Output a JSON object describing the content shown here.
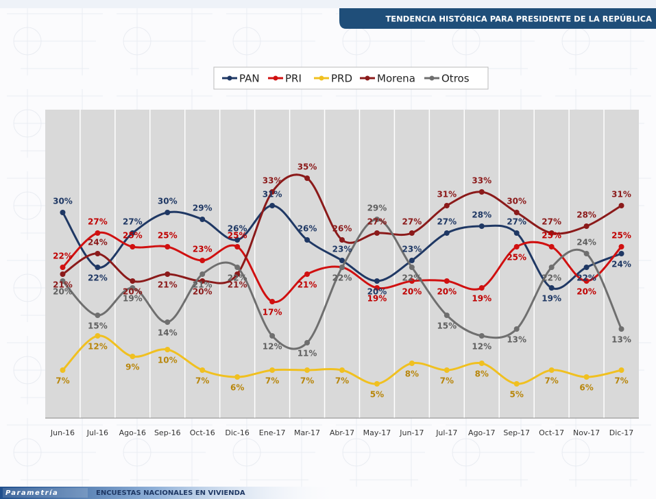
{
  "chart_data": {
    "type": "line",
    "title": "TENDENCIA HISTÓRICA PARA PRESIDENTE DE LA REPÚBLICA",
    "footer_brand": "Parametría",
    "footer_text": "ENCUESTAS NACIONALES  EN VIVIENDA",
    "categories": [
      "Jun-16",
      "Jul-16",
      "Ago-16",
      "Sep-16",
      "Oct-16",
      "Dic-16",
      "Ene-17",
      "Mar-17",
      "Abr-17",
      "May-17",
      "Jun-17",
      "Jul-17",
      "Ago-17",
      "Sep-17",
      "Oct-17",
      "Nov-17",
      "Dic-17"
    ],
    "series": [
      {
        "name": "PAN",
        "color": "#1f3864",
        "label_color": "#1f3864",
        "values": [
          30,
          22,
          27,
          30,
          29,
          26,
          31,
          26,
          23,
          20,
          23,
          27,
          28,
          27,
          19,
          22,
          24
        ],
        "value_labels": [
          "30%",
          "22%",
          "27%",
          "30%",
          "29%",
          "26%",
          "31%",
          "26%",
          "23%",
          "20%",
          "23%",
          "27%",
          "28%",
          "27%",
          "19%",
          "22%",
          "24%"
        ]
      },
      {
        "name": "PRI",
        "color": "#d01010",
        "label_color": "#c00000",
        "values": [
          22,
          27,
          25,
          25,
          23,
          25,
          17,
          21,
          22,
          19,
          20,
          20,
          19,
          25,
          25,
          20,
          25
        ],
        "value_labels": [
          "22%",
          "27%",
          "25%",
          "25%",
          "23%",
          "25%",
          "17%",
          "21%",
          null,
          "19%",
          "20%",
          "20%",
          "19%",
          "25%",
          "25%",
          "20%",
          "25%"
        ]
      },
      {
        "name": "PRD",
        "color": "#f0c020",
        "label_color": "#b8860b",
        "values": [
          7,
          12,
          9,
          10,
          7,
          6,
          7,
          7,
          7,
          5,
          8,
          7,
          8,
          5,
          7,
          6,
          7
        ],
        "value_labels": [
          "7%",
          "12%",
          "9%",
          "10%",
          "7%",
          "6%",
          "7%",
          "7%",
          "7%",
          "5%",
          "8%",
          "7%",
          "8%",
          "5%",
          "7%",
          "6%",
          "7%"
        ]
      },
      {
        "name": "Morena",
        "color": "#8b1a1a",
        "label_color": "#8b1a1a",
        "values": [
          21,
          24,
          20,
          21,
          20,
          21,
          33,
          35,
          26,
          27,
          27,
          31,
          33,
          30,
          27,
          28,
          31
        ],
        "value_labels": [
          "21%",
          "24%",
          "20%",
          "21%",
          "20%",
          "21%",
          "33%",
          "35%",
          "26%",
          "27%",
          "27%",
          "31%",
          "33%",
          "30%",
          "27%",
          "28%",
          "31%"
        ]
      },
      {
        "name": "Otros",
        "color": "#6f6f6f",
        "label_color": "#606060",
        "values": [
          20,
          15,
          19,
          14,
          21,
          22,
          12,
          11,
          22,
          29,
          22,
          15,
          12,
          13,
          22,
          24,
          13
        ],
        "value_labels": [
          "20%",
          "15%",
          "19%",
          "14%",
          "21%",
          "22%",
          "12%",
          "11%",
          "22%",
          "29%",
          "22%",
          "15%",
          "12%",
          "13%",
          "22%",
          "24%",
          "13%"
        ]
      }
    ],
    "ylim": [
      0,
      45
    ],
    "smooth": true,
    "markers": true,
    "legend": "top"
  }
}
